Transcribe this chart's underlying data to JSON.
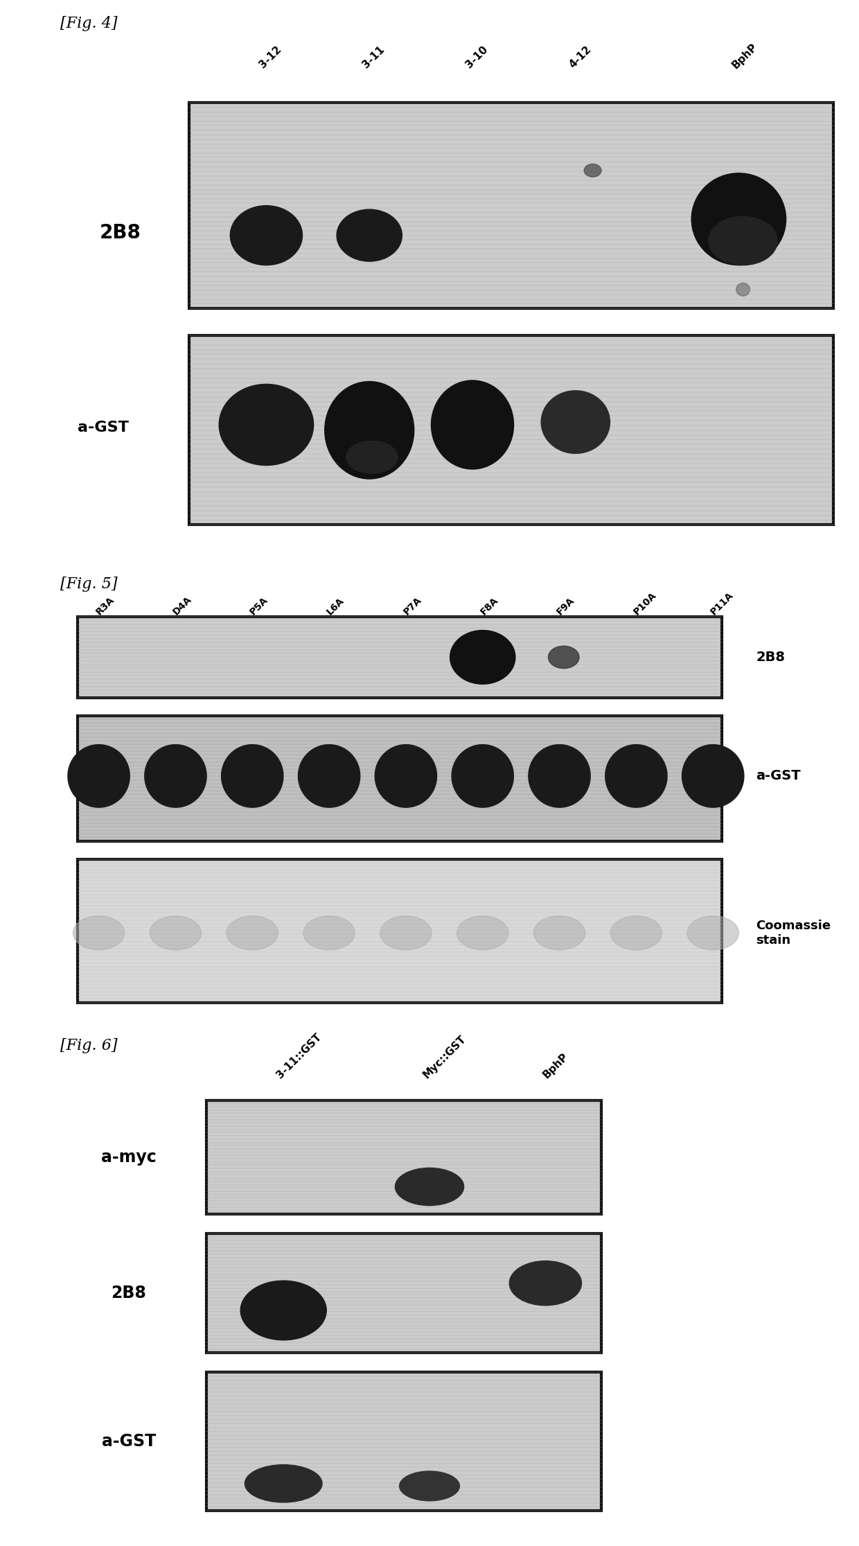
{
  "fig4_label": "[Fig. 4]",
  "fig5_label": "[Fig. 5]",
  "fig6_label": "[Fig. 6]",
  "fig4_cols": [
    "3-12",
    "3-11",
    "3-10",
    "4-12",
    "BphP"
  ],
  "fig5_cols": [
    "R3A",
    "D4A",
    "P5A",
    "L6A",
    "P7A",
    "F8A",
    "F9A",
    "P10A",
    "P11A"
  ],
  "fig6_cols": [
    "3-11::GST",
    "Myc::GST",
    "BphP"
  ],
  "background_color": "#ffffff",
  "panel_bg": "#cccccc",
  "panel_bg_coomassie": "#d5d5d5",
  "band_dark": "#1a1a1a",
  "band_mid": "#3a3a3a",
  "border_color": "#111111"
}
